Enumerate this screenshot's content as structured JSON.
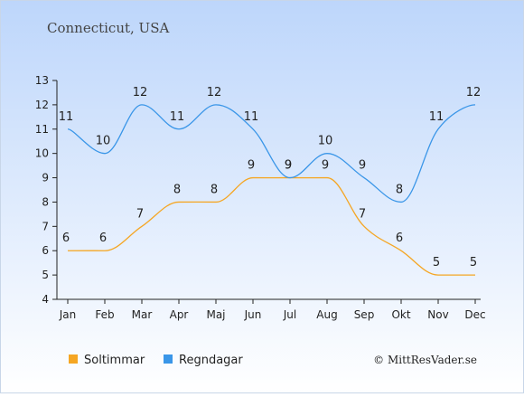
{
  "location": "Connecticut, USA",
  "credit": "© MittResVader.se",
  "colors": {
    "background_top": "#bdd6fb",
    "background_bottom": "#ffffff",
    "sun": "#f5a623",
    "rain": "#3a96e8"
  },
  "chart_data": {
    "type": "line",
    "categories": [
      "Jan",
      "Feb",
      "Mar",
      "Apr",
      "Maj",
      "Jun",
      "Jul",
      "Aug",
      "Sep",
      "Okt",
      "Nov",
      "Dec"
    ],
    "ylim": [
      4,
      13
    ],
    "yticks": [
      4,
      5,
      6,
      7,
      8,
      9,
      10,
      11,
      12,
      13
    ],
    "grid": false,
    "legend_position": "bottom",
    "series": [
      {
        "name": "Soltimmar",
        "color": "#f5a623",
        "values": [
          6,
          6,
          7,
          8,
          8,
          9,
          9,
          9,
          7,
          6,
          5,
          5
        ]
      },
      {
        "name": "Regndagar",
        "color": "#3a96e8",
        "values": [
          11,
          10,
          12,
          11,
          12,
          11,
          9,
          10,
          9,
          8,
          11,
          12
        ]
      }
    ]
  }
}
